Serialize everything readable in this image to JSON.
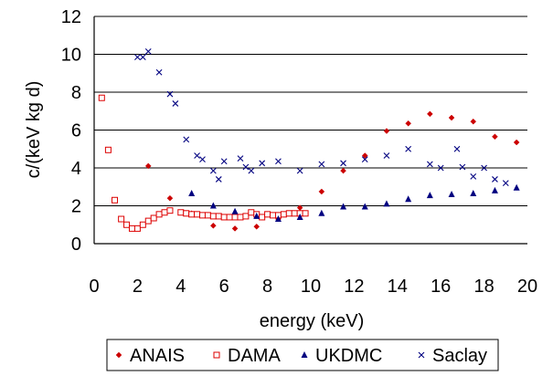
{
  "chart_data": {
    "type": "scatter",
    "title": "",
    "xlabel": "energy (keV)",
    "ylabel": "c/(keV kg d)",
    "xlim": [
      0,
      20
    ],
    "ylim": [
      0,
      12
    ],
    "x_ticks": [
      0,
      2,
      4,
      6,
      8,
      10,
      12,
      14,
      16,
      18,
      20
    ],
    "y_ticks": [
      0,
      2,
      4,
      6,
      8,
      10,
      12
    ],
    "grid": "horizontal",
    "legend_position": "bottom",
    "series": [
      {
        "name": "ANAIS",
        "marker": "diamond",
        "color": "#cc0000",
        "points": [
          [
            2.5,
            4.1
          ],
          [
            3.5,
            2.4
          ],
          [
            4.5,
            1.6
          ],
          [
            5.5,
            0.95
          ],
          [
            6.5,
            0.8
          ],
          [
            7.5,
            0.9
          ],
          [
            8.5,
            1.3
          ],
          [
            9.5,
            1.9
          ],
          [
            10.5,
            2.75
          ],
          [
            11.5,
            3.85
          ],
          [
            12.5,
            4.65
          ],
          [
            13.5,
            5.95
          ],
          [
            14.5,
            6.35
          ],
          [
            15.5,
            6.85
          ],
          [
            16.5,
            6.65
          ],
          [
            17.5,
            6.45
          ],
          [
            18.5,
            5.65
          ],
          [
            19.5,
            5.35
          ]
        ]
      },
      {
        "name": "DAMA",
        "marker": "square",
        "color": "#dd0000",
        "points": [
          [
            0.35,
            7.7
          ],
          [
            0.65,
            4.95
          ],
          [
            0.95,
            2.3
          ],
          [
            1.25,
            1.3
          ],
          [
            1.5,
            1.0
          ],
          [
            1.75,
            0.8
          ],
          [
            2.0,
            0.8
          ],
          [
            2.25,
            1.0
          ],
          [
            2.5,
            1.2
          ],
          [
            2.75,
            1.35
          ],
          [
            3.0,
            1.55
          ],
          [
            3.25,
            1.65
          ],
          [
            3.5,
            1.75
          ],
          [
            4.0,
            1.65
          ],
          [
            4.25,
            1.6
          ],
          [
            4.5,
            1.55
          ],
          [
            4.75,
            1.55
          ],
          [
            5.0,
            1.5
          ],
          [
            5.25,
            1.5
          ],
          [
            5.5,
            1.45
          ],
          [
            5.75,
            1.45
          ],
          [
            6.0,
            1.4
          ],
          [
            6.25,
            1.4
          ],
          [
            6.5,
            1.4
          ],
          [
            6.75,
            1.4
          ],
          [
            7.0,
            1.45
          ],
          [
            7.25,
            1.65
          ],
          [
            7.5,
            1.55
          ],
          [
            7.75,
            1.4
          ],
          [
            8.0,
            1.55
          ],
          [
            8.25,
            1.5
          ],
          [
            8.5,
            1.5
          ],
          [
            8.75,
            1.55
          ],
          [
            9.0,
            1.6
          ],
          [
            9.25,
            1.6
          ],
          [
            9.5,
            1.6
          ],
          [
            9.75,
            1.6
          ]
        ]
      },
      {
        "name": "UKDMC",
        "marker": "triangle",
        "color": "#000080",
        "points": [
          [
            4.5,
            2.65
          ],
          [
            5.5,
            2.0
          ],
          [
            6.5,
            1.7
          ],
          [
            7.5,
            1.45
          ],
          [
            8.5,
            1.3
          ],
          [
            9.5,
            1.4
          ],
          [
            10.5,
            1.6
          ],
          [
            11.5,
            1.95
          ],
          [
            12.5,
            1.95
          ],
          [
            13.5,
            2.1
          ],
          [
            14.5,
            2.35
          ],
          [
            15.5,
            2.55
          ],
          [
            16.5,
            2.6
          ],
          [
            17.5,
            2.65
          ],
          [
            18.5,
            2.8
          ],
          [
            19.5,
            2.95
          ]
        ]
      },
      {
        "name": "Saclay",
        "marker": "x",
        "color": "#000080",
        "points": [
          [
            2.0,
            9.85
          ],
          [
            2.25,
            9.85
          ],
          [
            2.5,
            10.15
          ],
          [
            3.0,
            9.05
          ],
          [
            3.5,
            7.9
          ],
          [
            3.75,
            7.4
          ],
          [
            4.25,
            5.5
          ],
          [
            4.75,
            4.65
          ],
          [
            5.0,
            4.45
          ],
          [
            5.5,
            3.85
          ],
          [
            5.75,
            3.4
          ],
          [
            6.0,
            4.35
          ],
          [
            6.75,
            4.5
          ],
          [
            7.0,
            4.05
          ],
          [
            7.25,
            3.85
          ],
          [
            7.75,
            4.25
          ],
          [
            8.5,
            4.35
          ],
          [
            9.5,
            3.85
          ],
          [
            10.5,
            4.2
          ],
          [
            11.5,
            4.25
          ],
          [
            12.5,
            4.45
          ],
          [
            13.5,
            4.65
          ],
          [
            14.5,
            5.0
          ],
          [
            15.5,
            4.2
          ],
          [
            16.0,
            4.0
          ],
          [
            16.75,
            5.0
          ],
          [
            17.0,
            4.05
          ],
          [
            17.5,
            3.55
          ],
          [
            18.0,
            4.0
          ],
          [
            18.5,
            3.4
          ],
          [
            19.0,
            3.2
          ]
        ]
      }
    ]
  }
}
